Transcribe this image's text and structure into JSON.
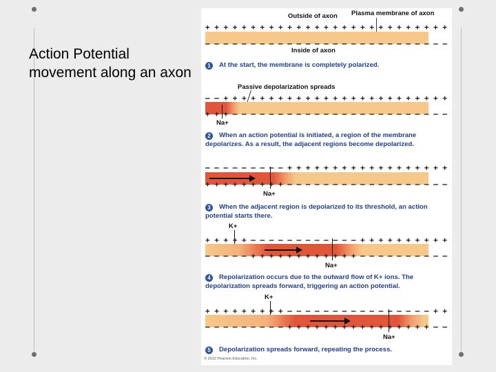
{
  "slide": {
    "title": "Action Potential movement along an axon"
  },
  "figure": {
    "outside_label": "Outside of axon",
    "membrane_label": "Plasma membrane of axon",
    "inside_label": "Inside of axon",
    "passive_label": "Passive depolarization spreads",
    "copyright": "© 2012 Pearson Education, Inc.",
    "ions": {
      "na": "Na+",
      "k": "K+"
    },
    "steps": [
      {
        "num": "1",
        "text": "At the start, the membrane is completely polarized."
      },
      {
        "num": "2",
        "text": "When an action potential is initiated, a region of the membrane depolarizes. As a result, the adjacent regions become depolarized."
      },
      {
        "num": "3",
        "text": "When the adjacent region is depolarized to its threshold, an action potential starts there."
      },
      {
        "num": "4",
        "text": "Repolarization occurs due to the outward flow of K+ ions. The depolarization spreads forward, triggering an action potential."
      },
      {
        "num": "5",
        "text": "Depolarization spreads forward, repeating the process."
      }
    ],
    "charges": {
      "s1_top": "+ + + + + + + + + + + + + + + + + + + + + + + + + + +",
      "s1_bot": "– – – – – – – – – – – – – – – – – – – – – – – – – – –",
      "s2_top": "– – + + + + + + + + + + + + + + + + + + + + + + + + +",
      "s2_bot": "+ + + – – – – – – – – – – – – – – – – – – – – – – – –",
      "s3_top": "– – – – – – – – – + + + + + + + + + + + + + + + + + +",
      "s3_bot": "+ + + + + + + + + – – – – – – – – – – – – – – – – – –",
      "s4_top": "+ + + + + – – – – – – – – – – – – + + + + + + + + + +",
      "s4_bot": "– – – – – + + + + + + + + + + + + – – – – – – – – – –",
      "s5_top": "+ + + + + + + + + – – – – – – – – – – – – – – – – + +",
      "s5_bot": "– – – – – – – – – + + + + + + + + + + + + + + + + – –"
    },
    "colors": {
      "membrane": "#f6c98a",
      "depolarized": "#e0563a",
      "step_text": "#1f3f8f"
    }
  }
}
